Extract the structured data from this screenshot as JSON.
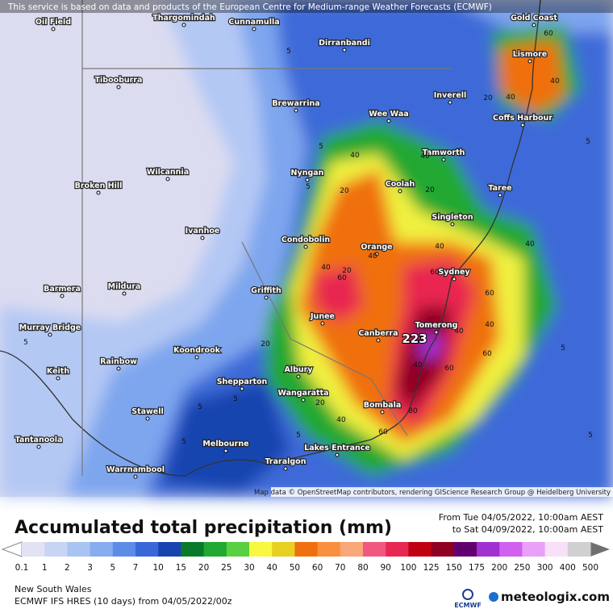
{
  "header": {
    "notice": "This service is based on data and products of the European Centre for Medium-range Weather Forecasts (ECMWF)"
  },
  "map": {
    "places": [
      "Oil Field",
      "Thargomindah",
      "Cunnamulla",
      "Dirranbandi",
      "Gold Coast",
      "Lismore",
      "Tibooburra",
      "Brewarrina",
      "Inverell",
      "Wee Waa",
      "Coffs Harbour",
      "Tamworth",
      "Wilcannia",
      "Nyngan",
      "Broken Hill",
      "Coolah",
      "Taree",
      "Singleton",
      "Ivanhoe",
      "Condobolin",
      "Orange",
      "Sydney",
      "Barmera",
      "Mildura",
      "Griffith",
      "Junee",
      "Canberra",
      "Tomerong",
      "Murray Bridge",
      "Koondrook",
      "Rainbow",
      "Keith",
      "Albury",
      "Shepparton",
      "Wangaratta",
      "Bombala",
      "Stawell",
      "Tantanoola",
      "Melbourne",
      "Lakes Entrance",
      "Traralgon",
      "Warrnambool"
    ],
    "contour_labels": [
      5,
      60,
      40,
      40,
      20,
      40,
      5,
      5,
      40,
      20,
      20,
      5,
      40,
      20,
      40,
      40,
      60,
      60,
      40,
      60,
      60,
      40,
      5,
      223,
      60,
      40,
      5,
      40,
      20,
      40,
      60,
      80,
      5,
      5,
      5,
      5,
      20,
      5
    ],
    "attribution": "Map data © OpenStreetMap contributors, rendering GIScience Research Group @ Heidelberg University"
  },
  "legend": {
    "title": "Accumulated total precipitation (mm)",
    "period": [
      "From Tue 04/05/2022, 10:00am AEST",
      "to Sat 04/09/2022, 10:00am AEST"
    ],
    "levels": [
      0.1,
      1,
      2,
      3,
      5,
      7,
      10,
      15,
      20,
      25,
      30,
      40,
      50,
      60,
      70,
      80,
      90,
      100,
      125,
      150,
      175,
      200,
      250,
      300,
      400,
      500
    ],
    "colors": [
      "#e2e2f4",
      "#c8d4f4",
      "#a8c4f4",
      "#88acf0",
      "#5c8ce8",
      "#3868d8",
      "#1844b0",
      "#0a7a2a",
      "#20a830",
      "#58d040",
      "#f8f840",
      "#e8d020",
      "#f07010",
      "#f89040",
      "#f8a878",
      "#f05880",
      "#e82850",
      "#c00010",
      "#900020",
      "#600070",
      "#a030d0",
      "#d060f0",
      "#e8a0f8",
      "#f8e0f8",
      "#d0d0d0"
    ]
  },
  "footer": {
    "region": "New South Wales",
    "model": "ECMWF IFS HRES (10 days) from 04/05/2022/00z",
    "ecmwf": "ECMWF",
    "brand": "meteologix.com"
  }
}
